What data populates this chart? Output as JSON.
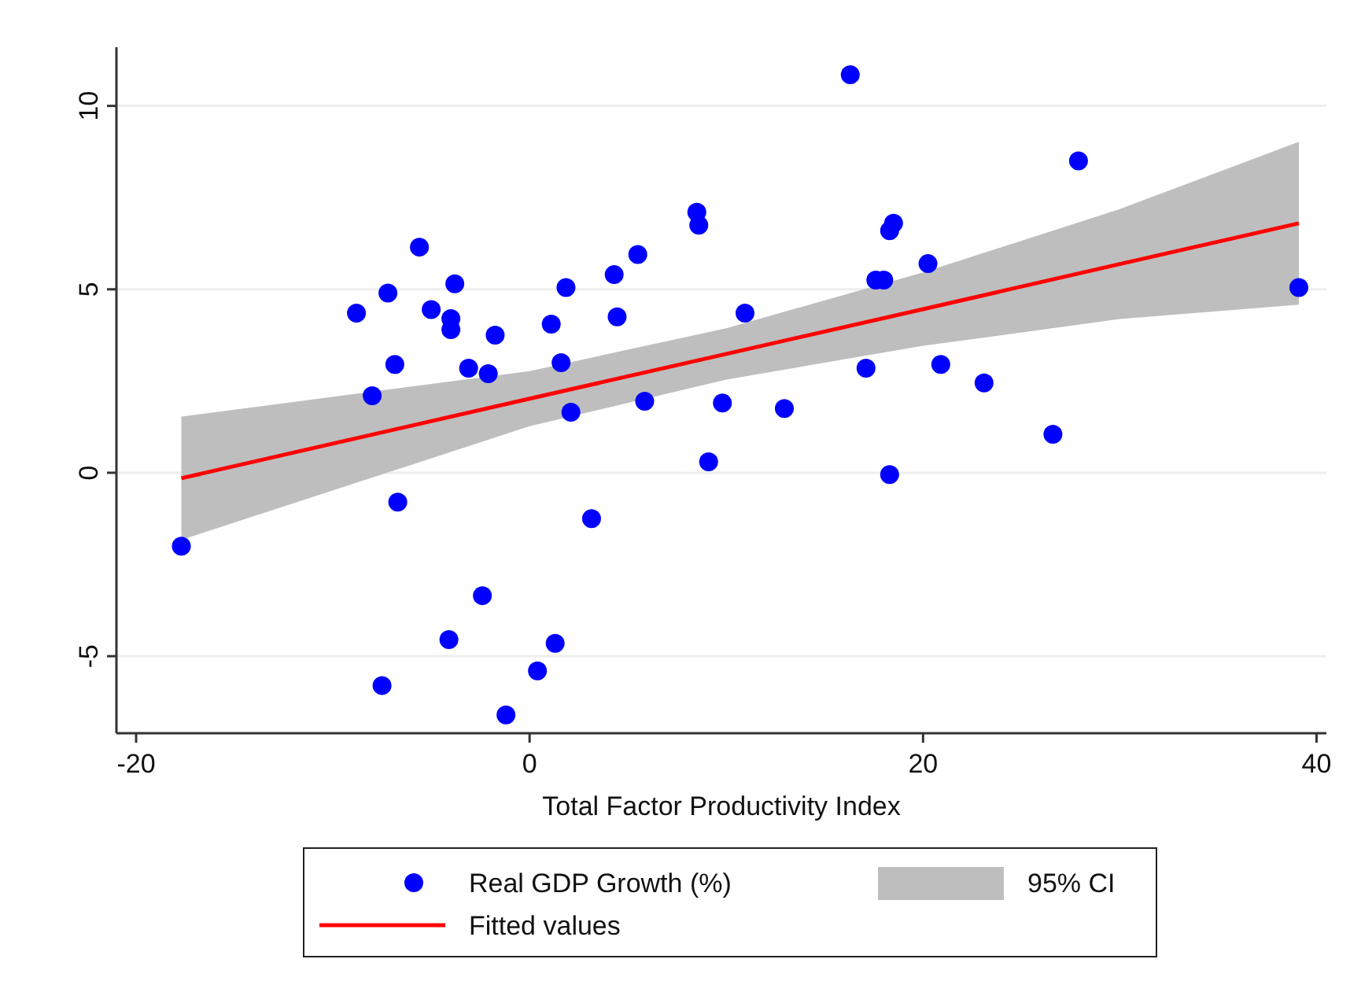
{
  "chart_data": {
    "type": "scatter",
    "xlabel": "Total Factor Productivity Index",
    "xlim": [
      -21,
      40.5
    ],
    "ylim": [
      -7.1,
      11.6
    ],
    "xticks": [
      -20,
      0,
      20,
      40
    ],
    "yticks": [
      -5,
      0,
      5,
      10
    ],
    "grid": "y",
    "legend": "bottom",
    "annotations": [
      "95% CI"
    ],
    "series": [
      {
        "name": "Fitted values",
        "type": "line",
        "color": "#ff0000",
        "marker": "none",
        "x": [
          -17.7,
          0,
          10,
          20,
          30,
          39.1
        ],
        "values": [
          -0.15,
          2.02,
          3.24,
          4.46,
          5.69,
          6.8
        ],
        "lower": [
          -1.83,
          1.27,
          2.54,
          3.46,
          4.19,
          4.58
        ],
        "upper": [
          1.53,
          2.77,
          3.94,
          5.46,
          7.19,
          9.02
        ]
      },
      {
        "name": "Real GDP Growth (%)",
        "type": "scatter",
        "color": "#0000ff",
        "marker": "circle",
        "x": [
          -17.7,
          -8.8,
          -8.0,
          -7.2,
          -6.85,
          -6.7,
          -7.5,
          -5.6,
          -5.0,
          -4.1,
          -4.0,
          -4.0,
          -3.8,
          -3.1,
          -2.4,
          -2.1,
          -1.75,
          -1.2,
          0.4,
          1.1,
          1.3,
          1.6,
          1.85,
          2.1,
          3.15,
          4.3,
          4.45,
          5.5,
          5.85,
          8.5,
          8.6,
          9.1,
          9.8,
          10.95,
          12.95,
          16.3,
          17.1,
          17.6,
          18.0,
          18.3,
          18.5,
          18.3,
          20.25,
          20.9,
          23.1,
          26.6,
          27.9,
          39.1
        ],
        "values": [
          -2.0,
          4.35,
          2.1,
          4.9,
          2.95,
          -0.8,
          -5.8,
          6.15,
          4.45,
          -4.55,
          4.2,
          3.9,
          5.15,
          2.85,
          -3.35,
          2.7,
          3.75,
          -6.6,
          -5.4,
          4.05,
          -4.65,
          3.0,
          5.05,
          1.65,
          -1.25,
          5.4,
          4.25,
          5.95,
          1.95,
          7.1,
          6.75,
          0.3,
          1.9,
          4.35,
          1.75,
          10.85,
          2.85,
          5.25,
          5.25,
          6.6,
          6.8,
          -0.05,
          5.7,
          2.95,
          2.45,
          1.05,
          8.5,
          5.05
        ]
      }
    ]
  }
}
